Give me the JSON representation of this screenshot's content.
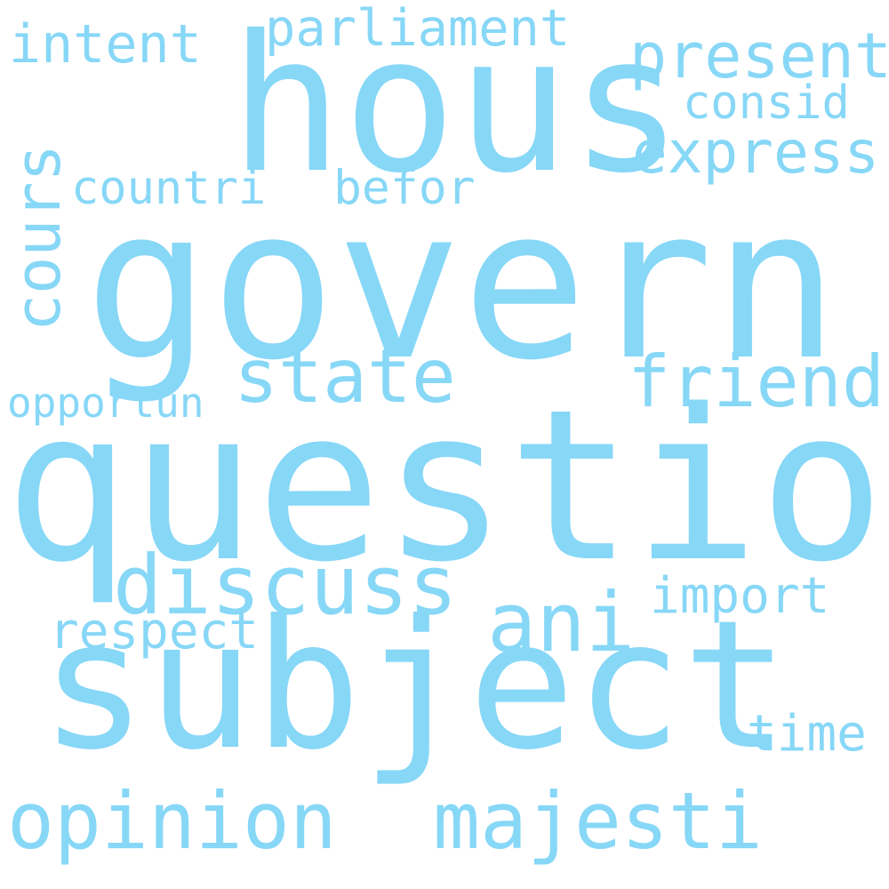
{
  "word_color": "#87d7f7",
  "background": "#ffffff",
  "words": {
    "hous": "hous",
    "govern": "govern",
    "question": "question",
    "subject": "subject",
    "parliament": "parliament",
    "intent": "intent",
    "present": "present",
    "consid": "consid",
    "express": "express",
    "cours": "cours",
    "countri": "countri",
    "befor": "befor",
    "state": "state",
    "friend": "friend",
    "opportun": "opportun",
    "discuss": "discuss",
    "ani": "ani",
    "import": "import",
    "respect": "respect",
    "time": "time",
    "opinion": "opinion",
    "majesti": "majesti"
  }
}
